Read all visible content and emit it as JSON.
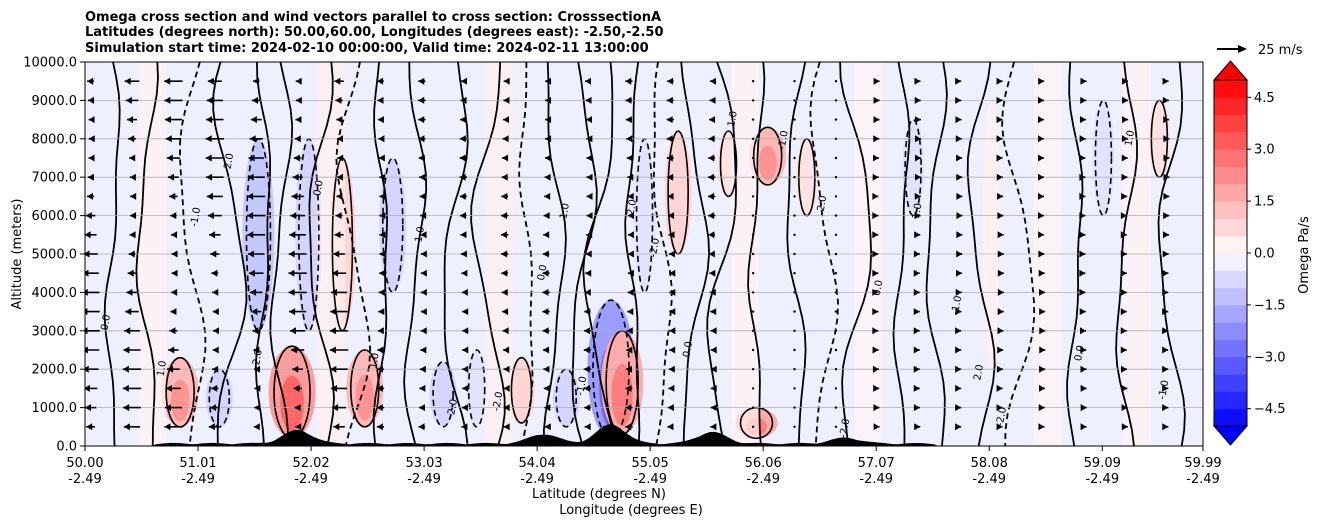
{
  "chart_data": {
    "type": "heatmap",
    "title_lines": [
      "Omega cross section and wind vectors parallel to cross section: CrosssectionA",
      "Latitudes (degrees north): 50.00,60.00, Longitudes (degrees east): -2.50,-2.50",
      "Simulation start time: 2024-02-10 00:00:00, Valid time: 2024-02-11 13:00:00"
    ],
    "xlabel": "Latitude (degrees N)",
    "xlabel2": "Longitude (degrees E)",
    "ylabel": "Altitude (meters)",
    "xlim": [
      50.0,
      59.99
    ],
    "ylim": [
      0.0,
      10000.0
    ],
    "x_ticks": [
      {
        "lat": "50.00",
        "lon": "-2.49"
      },
      {
        "lat": "51.01",
        "lon": "-2.49"
      },
      {
        "lat": "52.02",
        "lon": "-2.49"
      },
      {
        "lat": "53.03",
        "lon": "-2.49"
      },
      {
        "lat": "54.04",
        "lon": "-2.49"
      },
      {
        "lat": "55.05",
        "lon": "-2.49"
      },
      {
        "lat": "56.06",
        "lon": "-2.49"
      },
      {
        "lat": "57.07",
        "lon": "-2.49"
      },
      {
        "lat": "58.08",
        "lon": "-2.49"
      },
      {
        "lat": "59.09",
        "lon": "-2.49"
      },
      {
        "lat": "59.99",
        "lon": "-2.49"
      }
    ],
    "y_ticks": [
      "0.0",
      "1000.0",
      "2000.0",
      "3000.0",
      "4000.0",
      "5000.0",
      "6000.0",
      "7000.0",
      "8000.0",
      "9000.0",
      "10000.0"
    ],
    "colorbar": {
      "label": "Omega Pa/s",
      "range": [
        -5.0,
        5.0
      ],
      "extend": "both",
      "tick_values": [
        4.5,
        3.0,
        1.5,
        0.0,
        -1.5,
        -3.0,
        -4.5
      ],
      "ticks": [
        "4.5",
        "3.0",
        "1.5",
        "0.0",
        "−1.5",
        "−3.0",
        "−4.5"
      ]
    },
    "quiver_key": {
      "label": "25 m/s",
      "value": 25
    },
    "contour_labels": [
      "0.0",
      "1.0",
      "-1.0",
      "2.0",
      "-2.0"
    ],
    "omega_features": [
      {
        "lat": 50.85,
        "z_low": 500,
        "z_high": 2300,
        "omega": 2.5
      },
      {
        "lat": 51.2,
        "z_low": 500,
        "z_high": 2000,
        "omega": -1.5
      },
      {
        "lat": 51.55,
        "z_low": 3000,
        "z_high": 8000,
        "omega": -2.0
      },
      {
        "lat": 51.85,
        "z_low": 200,
        "z_high": 2600,
        "omega": 3.5
      },
      {
        "lat": 52.0,
        "z_low": 3000,
        "z_high": 8000,
        "omega": -1.5
      },
      {
        "lat": 52.3,
        "z_low": 3000,
        "z_high": 7500,
        "omega": 1.5
      },
      {
        "lat": 52.5,
        "z_low": 500,
        "z_high": 2500,
        "omega": 2.5
      },
      {
        "lat": 52.75,
        "z_low": 4000,
        "z_high": 7500,
        "omega": -1.5
      },
      {
        "lat": 53.2,
        "z_low": 500,
        "z_high": 2200,
        "omega": -1.5
      },
      {
        "lat": 53.5,
        "z_low": 500,
        "z_high": 2500,
        "omega": -1.0
      },
      {
        "lat": 53.9,
        "z_low": 600,
        "z_high": 2300,
        "omega": 1.5
      },
      {
        "lat": 54.3,
        "z_low": 500,
        "z_high": 2000,
        "omega": -1.5
      },
      {
        "lat": 54.7,
        "z_low": 200,
        "z_high": 3800,
        "omega": -3.5
      },
      {
        "lat": 54.8,
        "z_low": 300,
        "z_high": 3000,
        "omega": 3.0
      },
      {
        "lat": 55.0,
        "z_low": 4000,
        "z_high": 8000,
        "omega": -1.0
      },
      {
        "lat": 55.3,
        "z_low": 5000,
        "z_high": 8200,
        "omega": 1.5
      },
      {
        "lat": 55.75,
        "z_low": 6500,
        "z_high": 8200,
        "omega": 1.0
      },
      {
        "lat": 56.1,
        "z_low": 6800,
        "z_high": 8300,
        "omega": 2.5
      },
      {
        "lat": 56.0,
        "z_low": 200,
        "z_high": 1000,
        "omega": 3.0
      },
      {
        "lat": 56.45,
        "z_low": 6000,
        "z_high": 8000,
        "omega": 1.0
      },
      {
        "lat": 57.4,
        "z_low": 6000,
        "z_high": 8500,
        "omega": -1.0
      },
      {
        "lat": 58.1,
        "z_low": 2000,
        "z_high": 9000,
        "omega": 0.5
      },
      {
        "lat": 59.1,
        "z_low": 6000,
        "z_high": 9000,
        "omega": -1.0
      },
      {
        "lat": 59.6,
        "z_low": 7000,
        "z_high": 9000,
        "omega": 1.0
      }
    ],
    "wind_by_region": [
      {
        "lat_from": 50.0,
        "lat_to": 52.6,
        "direction": "southward",
        "speed_ms": 20
      },
      {
        "lat_from": 52.6,
        "lat_to": 55.6,
        "direction": "southward",
        "speed_ms": 8
      },
      {
        "lat_from": 55.6,
        "lat_to": 56.9,
        "direction": "weak",
        "speed_ms": 2
      },
      {
        "lat_from": 56.9,
        "lat_to": 59.99,
        "direction": "northward",
        "speed_ms": 5
      }
    ],
    "terrain_peaks": [
      {
        "lat": 51.9,
        "height_m": 350
      },
      {
        "lat": 54.1,
        "height_m": 250
      },
      {
        "lat": 54.7,
        "height_m": 500
      },
      {
        "lat": 55.6,
        "height_m": 300
      },
      {
        "lat": 56.8,
        "height_m": 150
      }
    ]
  },
  "colors": {
    "positive_max": "#ff0000",
    "zero": "#ffffff",
    "negative_max": "#0000ff",
    "terrain": "#000000",
    "grid": "#b0b0b0"
  }
}
